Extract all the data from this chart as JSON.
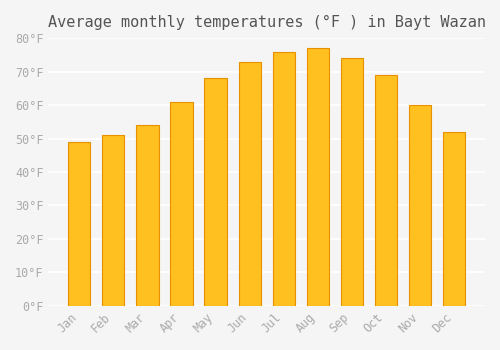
{
  "title": "Average monthly temperatures (°F ) in Bayt Wazan",
  "months": [
    "Jan",
    "Feb",
    "Mar",
    "Apr",
    "May",
    "Jun",
    "Jul",
    "Aug",
    "Sep",
    "Oct",
    "Nov",
    "Dec"
  ],
  "values": [
    49,
    51,
    54,
    61,
    68,
    73,
    76,
    77,
    74,
    69,
    60,
    52
  ],
  "bar_color_main": "#FFC020",
  "bar_color_edge": "#E89000",
  "background_color": "#F5F5F5",
  "grid_color": "#FFFFFF",
  "ylim": [
    0,
    80
  ],
  "yticks": [
    0,
    10,
    20,
    30,
    40,
    50,
    60,
    70,
    80
  ],
  "ytick_labels": [
    "0°F",
    "10°F",
    "20°F",
    "30°F",
    "40°F",
    "50°F",
    "60°F",
    "70°F",
    "80°F"
  ],
  "tick_color": "#AAAAAA",
  "title_fontsize": 11,
  "tick_fontsize": 8.5,
  "font_family": "monospace"
}
